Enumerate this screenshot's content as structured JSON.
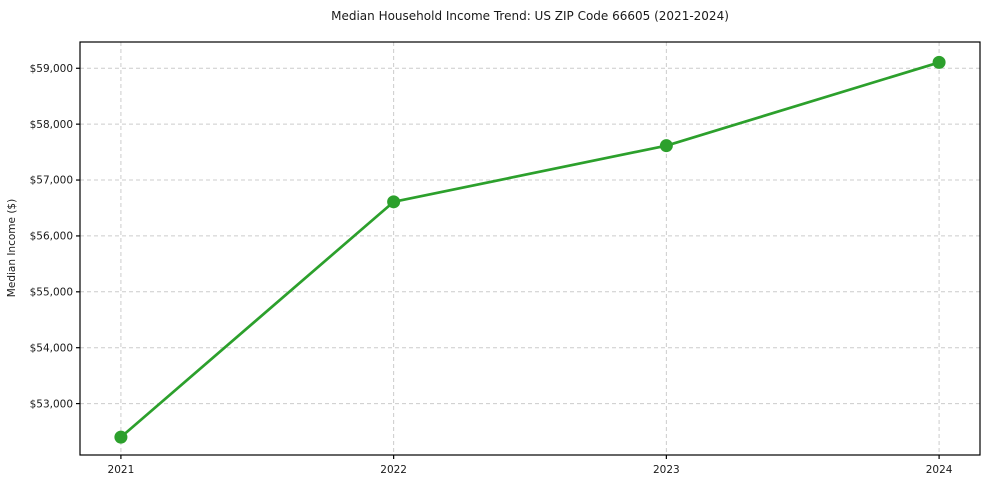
{
  "chart_data": {
    "type": "line",
    "title": "Median Household Income Trend: US ZIP Code 66605 (2021-2024)",
    "xlabel": "",
    "ylabel": "Median Income ($)",
    "categories": [
      "2021",
      "2022",
      "2023",
      "2024"
    ],
    "series": [
      {
        "name": "Median Household Income",
        "values": [
          52400,
          56610,
          57615,
          59105
        ]
      }
    ],
    "ylim": [
      52080,
      59470
    ],
    "x_margin_fraction": 0.15,
    "yticks": [
      53000,
      54000,
      55000,
      56000,
      57000,
      58000,
      59000
    ],
    "ytick_labels": [
      "$53,000",
      "$54,000",
      "$55,000",
      "$56,000",
      "$57,000",
      "$58,000",
      "$59,000"
    ],
    "xtick_labels": [
      "2021",
      "2022",
      "2023",
      "2024"
    ],
    "grid": "dashed-both",
    "legend_position": "none",
    "colors": {
      "line": "#2ca02c",
      "marker": "#2ca02c",
      "grid": "#cccccc",
      "spine": "#000000",
      "text": "#1a1a1a",
      "background": "#ffffff"
    }
  }
}
